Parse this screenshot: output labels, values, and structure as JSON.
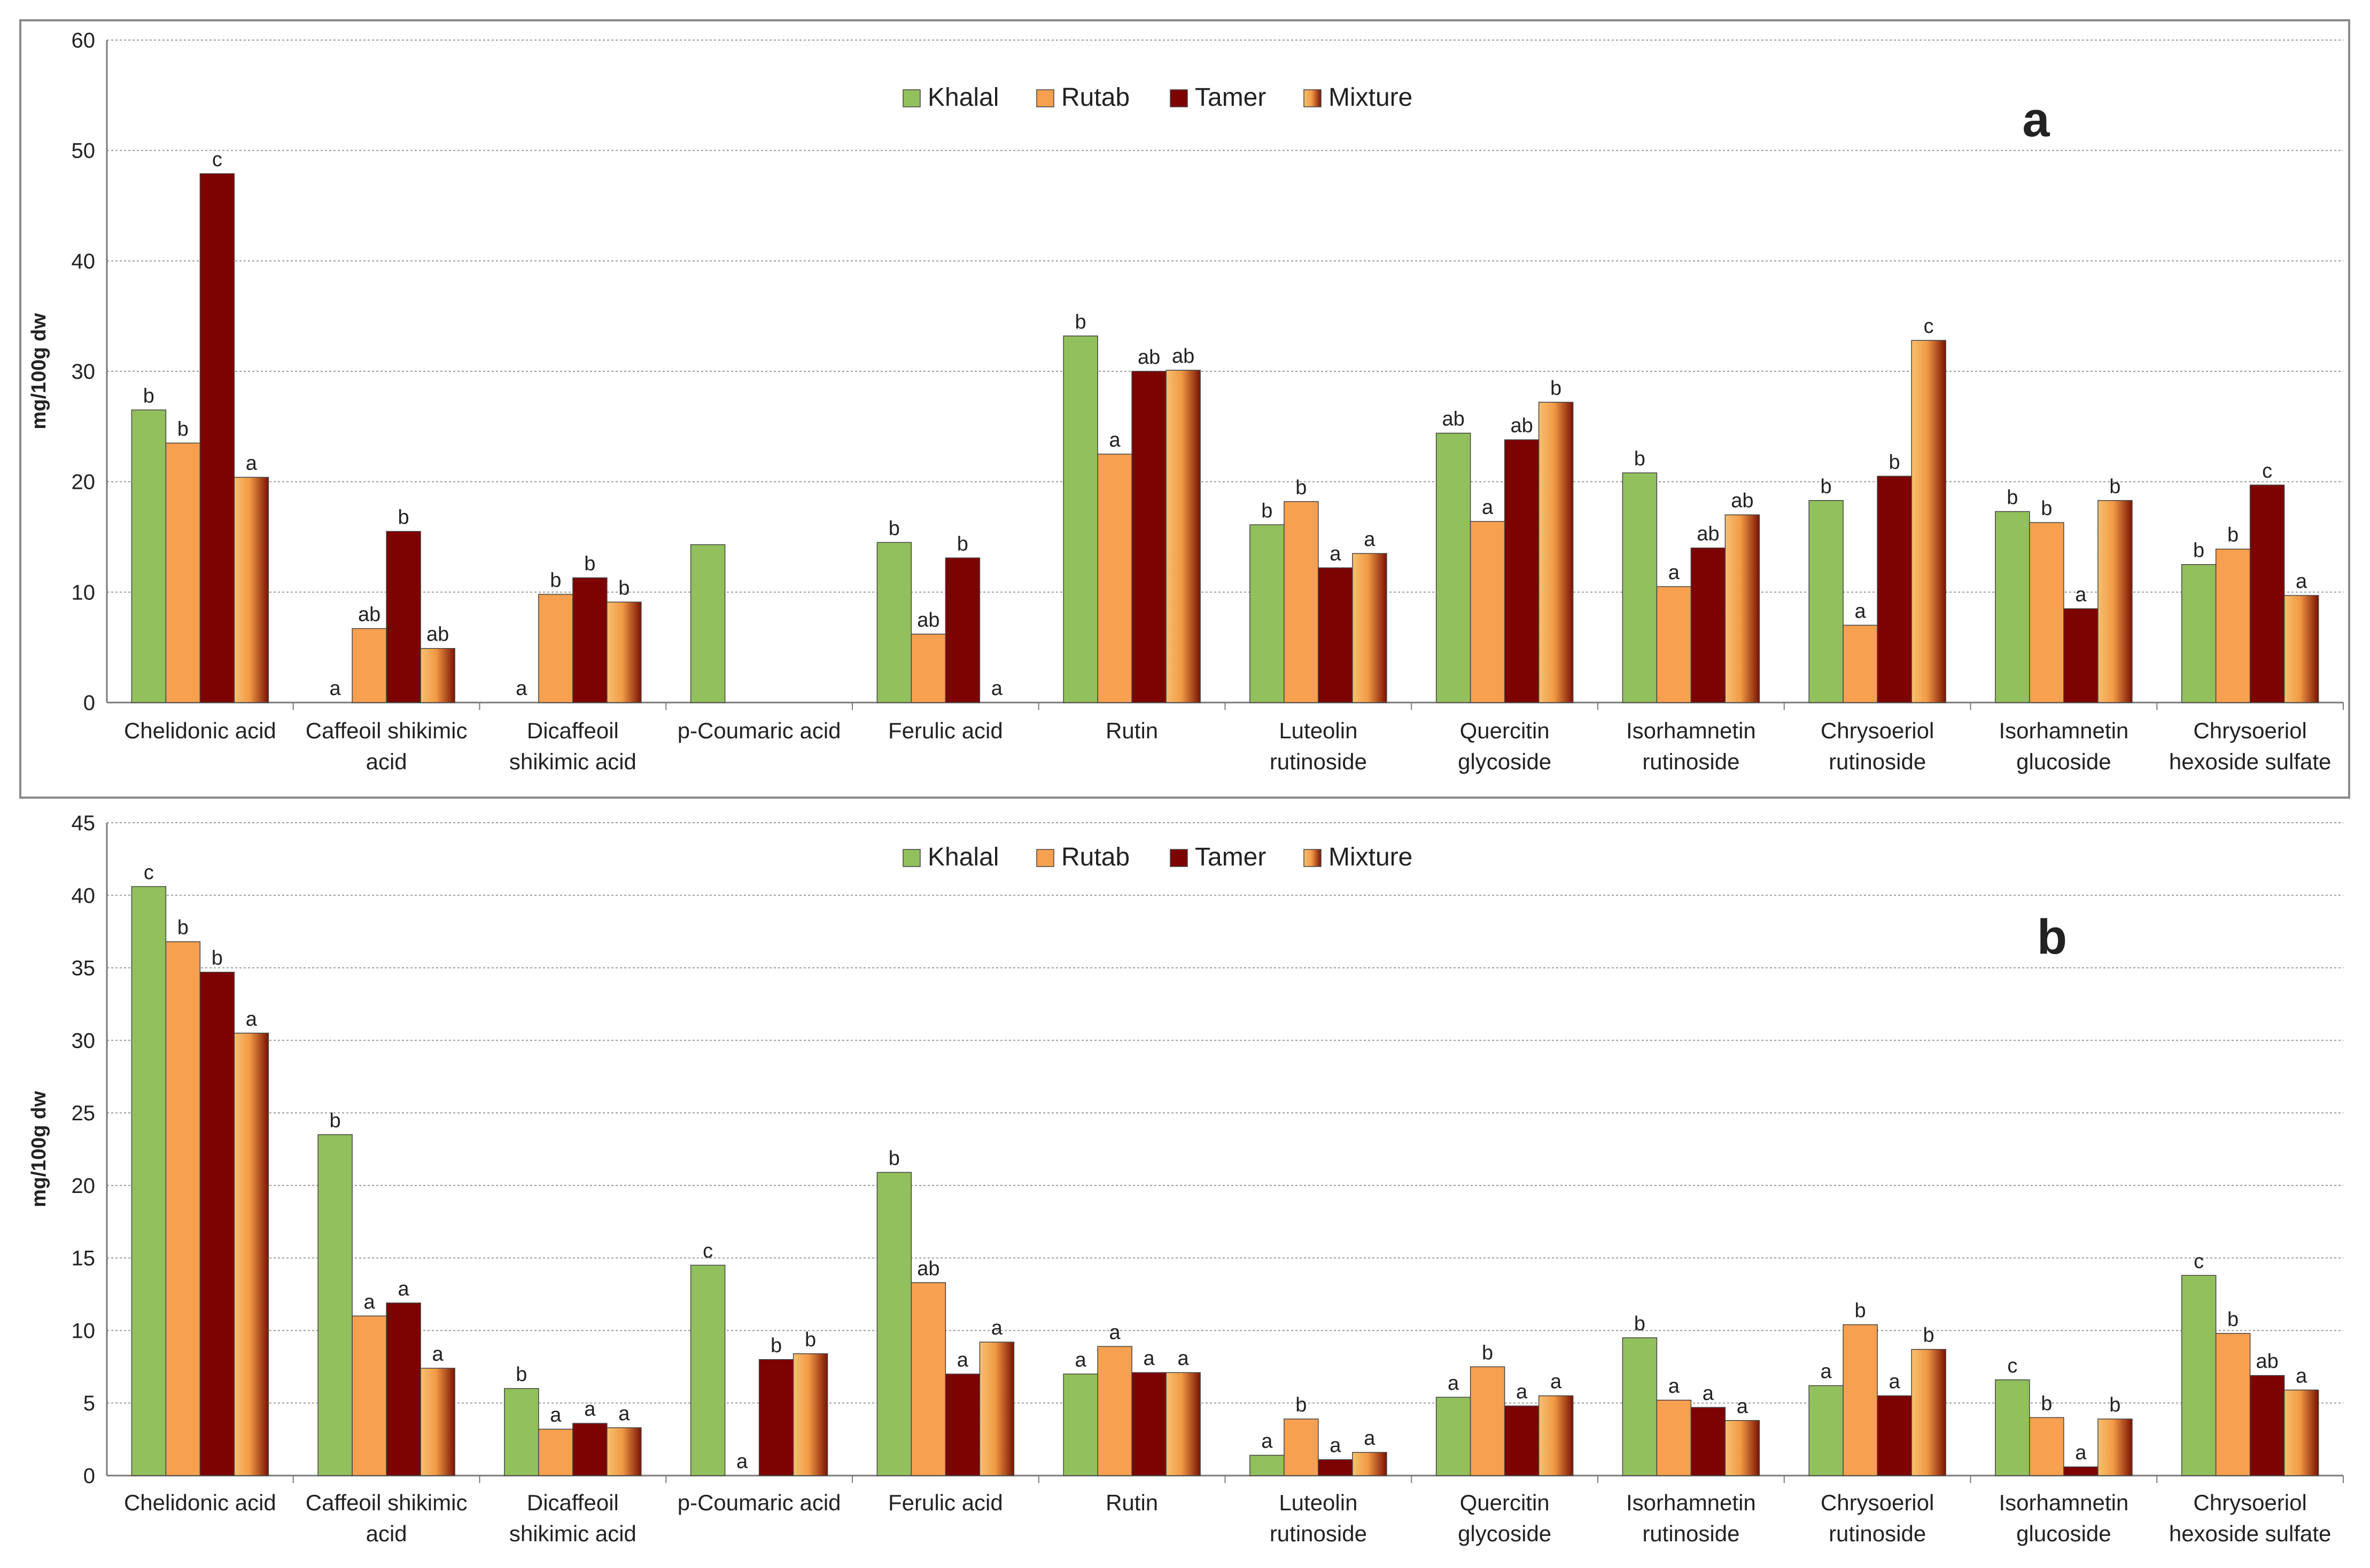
{
  "colors": {
    "khalal": "#92c05c",
    "rutab": "#f7a04f",
    "tamer": "#7d0202",
    "mixture_light": "#f4b46a",
    "mixture_dark": "#7a1303",
    "grid": "#9a9a9a",
    "axis": "#7a7a7a",
    "frame": "#8a8a8a"
  },
  "chart_data": [
    {
      "type": "bar",
      "panel_label": "a",
      "ylabel": "mg/100g dw",
      "ylim": [
        0,
        60
      ],
      "yticks": [
        "0",
        "10",
        "20",
        "30",
        "40",
        "50",
        "60"
      ],
      "grid": true,
      "legend_position": "top-center",
      "categories": [
        [
          "Chelidonic acid"
        ],
        [
          "Caffeoil shikimic",
          "acid"
        ],
        [
          "Dicaffeoil",
          "shikimic acid"
        ],
        [
          "p-Coumaric acid"
        ],
        [
          "Ferulic acid"
        ],
        [
          "Rutin"
        ],
        [
          "Luteolin",
          "rutinoside"
        ],
        [
          "Quercitin",
          "glycoside"
        ],
        [
          "Isorhamnetin",
          "rutinoside"
        ],
        [
          "Chrysoeriol",
          "rutinoside"
        ],
        [
          "Isorhamnetin",
          "glucoside"
        ],
        [
          "Chrysoeriol",
          "hexoside sulfate"
        ]
      ],
      "series": [
        {
          "name": "Khalal",
          "values": [
            26.5,
            0,
            0,
            14.3,
            14.5,
            33.2,
            16.1,
            24.4,
            20.8,
            18.3,
            17.3,
            12.5
          ],
          "letters": [
            "b",
            "a",
            "a",
            "",
            "b",
            "b",
            "b",
            "ab",
            "b",
            "b",
            "b",
            "b"
          ]
        },
        {
          "name": "Rutab",
          "values": [
            23.5,
            6.7,
            9.8,
            0,
            6.2,
            22.5,
            18.2,
            16.4,
            10.5,
            7.0,
            16.3,
            13.9
          ],
          "letters": [
            "b",
            "ab",
            "b",
            "",
            "ab",
            "a",
            "b",
            "a",
            "a",
            "a",
            "b",
            "b"
          ]
        },
        {
          "name": "Tamer",
          "values": [
            47.9,
            15.5,
            11.3,
            0,
            13.1,
            30.0,
            12.2,
            23.8,
            14.0,
            20.5,
            8.5,
            19.7
          ],
          "letters": [
            "c",
            "b",
            "b",
            "",
            "b",
            "ab",
            "a",
            "ab",
            "ab",
            "b",
            "a",
            "c"
          ]
        },
        {
          "name": "Mixture",
          "values": [
            20.4,
            4.9,
            9.1,
            0,
            0,
            30.1,
            13.5,
            27.2,
            17.0,
            32.8,
            18.3,
            9.7
          ],
          "letters": [
            "a",
            "ab",
            "b",
            "",
            "a",
            "ab",
            "a",
            "b",
            "ab",
            "c",
            "b",
            "a"
          ]
        }
      ]
    },
    {
      "type": "bar",
      "panel_label": "b",
      "ylabel": "mg/100g dw",
      "ylim": [
        0,
        45
      ],
      "yticks": [
        "0",
        "5",
        "10",
        "15",
        "20",
        "25",
        "30",
        "35",
        "40",
        "45"
      ],
      "grid": true,
      "legend_position": "top-center",
      "categories": [
        [
          "Chelidonic acid"
        ],
        [
          "Caffeoil shikimic",
          "acid"
        ],
        [
          "Dicaffeoil",
          "shikimic acid"
        ],
        [
          "p-Coumaric acid"
        ],
        [
          "Ferulic acid"
        ],
        [
          "Rutin"
        ],
        [
          "Luteolin",
          "rutinoside"
        ],
        [
          "Quercitin",
          "glycoside"
        ],
        [
          "Isorhamnetin",
          "rutinoside"
        ],
        [
          "Chrysoeriol",
          "rutinoside"
        ],
        [
          "Isorhamnetin",
          "glucoside"
        ],
        [
          "Chrysoeriol",
          "hexoside sulfate"
        ]
      ],
      "series": [
        {
          "name": "Khalal",
          "values": [
            40.6,
            23.5,
            6.0,
            14.5,
            20.9,
            7.0,
            1.4,
            5.4,
            9.5,
            6.2,
            6.6,
            13.8
          ],
          "letters": [
            "c",
            "b",
            "b",
            "c",
            "b",
            "a",
            "a",
            "a",
            "b",
            "a",
            "c",
            "c"
          ]
        },
        {
          "name": "Rutab",
          "values": [
            36.8,
            11.0,
            3.2,
            0,
            13.3,
            8.9,
            3.9,
            7.5,
            5.2,
            10.4,
            4.0,
            9.8
          ],
          "letters": [
            "b",
            "a",
            "a",
            "a",
            "ab",
            "a",
            "b",
            "b",
            "a",
            "b",
            "b",
            "b"
          ]
        },
        {
          "name": "Tamer",
          "values": [
            34.7,
            11.9,
            3.6,
            8.0,
            7.0,
            7.1,
            1.1,
            4.8,
            4.7,
            5.5,
            0.6,
            6.9
          ],
          "letters": [
            "b",
            "a",
            "a",
            "b",
            "a",
            "a",
            "a",
            "a",
            "a",
            "a",
            "a",
            "ab"
          ]
        },
        {
          "name": "Mixture",
          "values": [
            30.5,
            7.4,
            3.3,
            8.4,
            9.2,
            7.1,
            1.6,
            5.5,
            3.8,
            8.7,
            3.9,
            5.9
          ],
          "letters": [
            "a",
            "a",
            "a",
            "b",
            "a",
            "a",
            "a",
            "a",
            "a",
            "b",
            "b",
            "a"
          ]
        }
      ]
    }
  ]
}
